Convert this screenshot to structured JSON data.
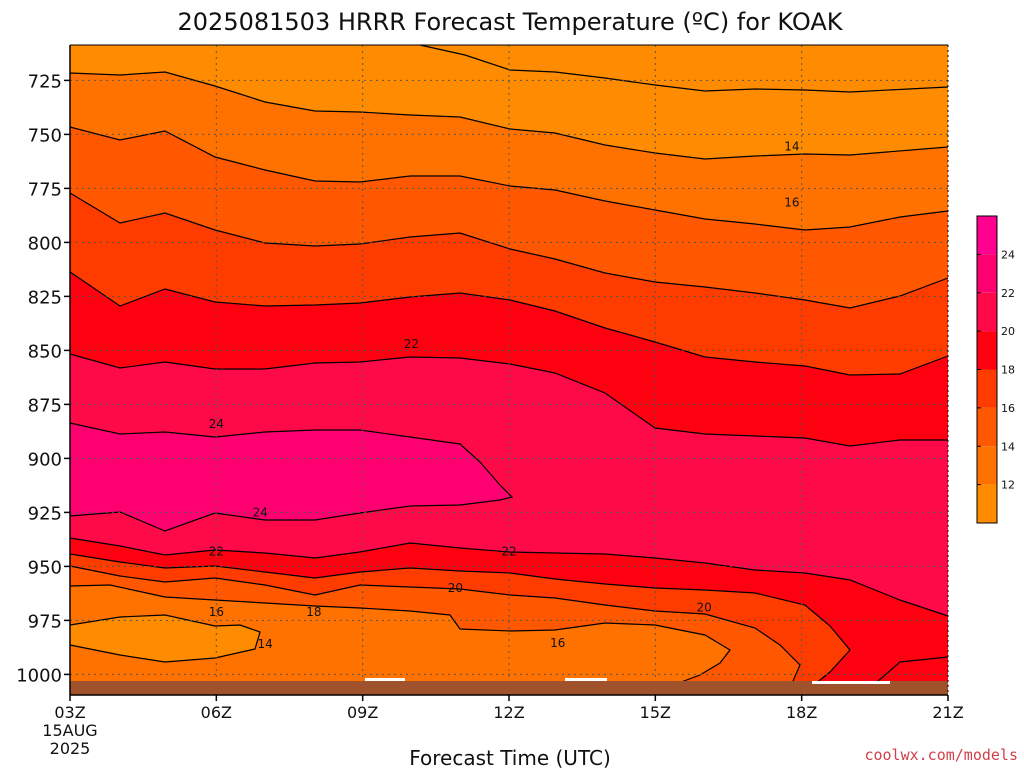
{
  "chart_data": {
    "type": "heatmap",
    "title": "2025081503 HRRR Forecast Temperature (ºC) for KOAK",
    "xlabel": "Forecast Time (UTC)",
    "ylabel": "",
    "x_ticks": [
      "03Z",
      "06Z",
      "09Z",
      "12Z",
      "15Z",
      "18Z",
      "21Z"
    ],
    "x_date_line1": "15AUG",
    "x_date_line2": "2025",
    "y_ticks": [
      725,
      750,
      775,
      800,
      825,
      850,
      875,
      900,
      925,
      950,
      975,
      1000
    ],
    "y_range_hPa": [
      1010,
      712
    ],
    "y_scale": "pressure (inverted)",
    "grid": true,
    "legend": "colorbar right",
    "colorbar": {
      "labels": [
        "12",
        "14",
        "16",
        "18",
        "20",
        "22",
        "24"
      ],
      "colors": [
        "#ff8c00",
        "#ff7200",
        "#ff5800",
        "#ff3c00",
        "#ff0010",
        "#ff0a48",
        "#ff0070",
        "#ff0090"
      ]
    },
    "contour_labels": [
      {
        "text": "14",
        "time": 17.8,
        "p": 755.5
      },
      {
        "text": "16",
        "time": 17.8,
        "p": 781.5
      },
      {
        "text": "22",
        "time": 10.0,
        "p": 847
      },
      {
        "text": "24",
        "time": 6.0,
        "p": 884
      },
      {
        "text": "24",
        "time": 6.9,
        "p": 925
      },
      {
        "text": "22",
        "time": 6.0,
        "p": 943
      },
      {
        "text": "22",
        "time": 12.0,
        "p": 943
      },
      {
        "text": "20",
        "time": 10.9,
        "p": 960
      },
      {
        "text": "18",
        "time": 8.0,
        "p": 971
      },
      {
        "text": "16",
        "time": 6.0,
        "p": 971
      },
      {
        "text": "14",
        "time": 7.0,
        "p": 986
      },
      {
        "text": "16",
        "time": 13.0,
        "p": 985.5
      },
      {
        "text": "20",
        "time": 16.0,
        "p": 969
      }
    ],
    "ground_color": "#a0522d",
    "credit": "coolwx.com/models"
  }
}
